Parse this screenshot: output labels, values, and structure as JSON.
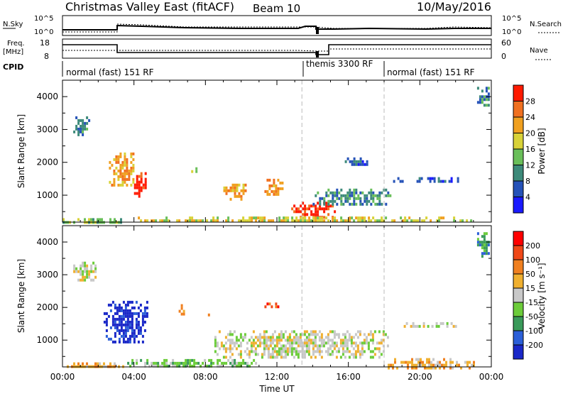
{
  "header": {
    "title": "Christmas Valley East (fitACF)",
    "beam": "Beam 10",
    "date": "10/May/2016"
  },
  "top_panels": {
    "nsky_label": "N.Sky",
    "nsky_ticks": [
      "10^5",
      "10^0"
    ],
    "nsearch_label": "N.Search",
    "freq_label_1": "Freq.",
    "freq_label_2": "[MHz]",
    "freq_ticks": [
      "18",
      "8"
    ],
    "nave_ticks": [
      "60",
      "0"
    ],
    "nave_label": "Nave",
    "cpid_label": "CPID",
    "cpid_segments": [
      "normal (fast) 151 RF",
      "themis 3300 RF",
      "normal (fast) 151 RF"
    ]
  },
  "chart_data": [
    {
      "type": "heatmap",
      "title": "",
      "xlabel": "",
      "ylabel": "Slant Range [km]",
      "xlim": [
        0,
        24
      ],
      "ylim": [
        180,
        4500
      ],
      "x_tick_labels": [
        "00:00",
        "04:00",
        "08:00",
        "12:00",
        "16:00",
        "20:00",
        "00:00"
      ],
      "y_ticks": [
        1000,
        2000,
        3000,
        4000
      ],
      "colorbar": {
        "label": "Power [dB]",
        "ticks": [
          "4",
          "8",
          "12",
          "16",
          "20",
          "24",
          "28"
        ],
        "colors": [
          "#1a1aff",
          "#2552b8",
          "#3d8a7a",
          "#6abf5a",
          "#d8d238",
          "#f0a020",
          "#f07020",
          "#ff1a00"
        ]
      },
      "regions": [
        {
          "t0": 0.6,
          "t1": 1.5,
          "r0": 2800,
          "r1": 3400,
          "level": 2
        },
        {
          "t0": 2.6,
          "t1": 4.0,
          "r0": 1300,
          "r1": 2300,
          "level": 5
        },
        {
          "t0": 4.0,
          "t1": 4.7,
          "r0": 1000,
          "r1": 1700,
          "level": 7
        },
        {
          "t0": 7.2,
          "t1": 7.6,
          "r0": 1650,
          "r1": 1850,
          "level": 3
        },
        {
          "t0": 9.0,
          "t1": 10.2,
          "r0": 900,
          "r1": 1350,
          "level": 5
        },
        {
          "t0": 11.3,
          "t1": 12.3,
          "r0": 1000,
          "r1": 1500,
          "level": 5
        },
        {
          "t0": 12.8,
          "t1": 15.3,
          "r0": 350,
          "r1": 800,
          "level": 7
        },
        {
          "t0": 14.0,
          "t1": 18.3,
          "r0": 700,
          "r1": 1200,
          "level": 2
        },
        {
          "t0": 15.8,
          "t1": 17.0,
          "r0": 1950,
          "r1": 2150,
          "level": 1
        },
        {
          "t0": 18.5,
          "t1": 22.3,
          "r0": 1450,
          "r1": 1550,
          "level": 1
        },
        {
          "t0": 3.5,
          "t1": 23.0,
          "r0": 180,
          "r1": 350,
          "level": 4
        },
        {
          "t0": 0.0,
          "t1": 3.5,
          "r0": 180,
          "r1": 300,
          "level": 3
        },
        {
          "t0": 23.2,
          "t1": 23.9,
          "r0": 3700,
          "r1": 4300,
          "level": 2
        }
      ]
    },
    {
      "type": "heatmap",
      "title": "",
      "xlabel": "Time UT",
      "ylabel": "Slant Range [km]",
      "xlim": [
        0,
        24
      ],
      "ylim": [
        180,
        4500
      ],
      "x_tick_labels": [
        "00:00",
        "04:00",
        "08:00",
        "12:00",
        "16:00",
        "20:00",
        "00:00"
      ],
      "y_ticks": [
        1000,
        2000,
        3000,
        4000
      ],
      "colorbar": {
        "label": "Velocity [m s⁻¹]",
        "ticks": [
          "200",
          "100",
          "50",
          "15",
          "-15",
          "-50",
          "-100",
          "-200"
        ],
        "colors": [
          "#1a28c8",
          "#2b5fd8",
          "#3a9a5a",
          "#6ccc3a",
          "#c8c8c8",
          "#f0b030",
          "#f08020",
          "#f04818",
          "#ff0000"
        ]
      },
      "regions": [
        {
          "t0": 0.6,
          "t1": 1.8,
          "r0": 2800,
          "r1": 3400,
          "level": 4
        },
        {
          "t0": 2.3,
          "t1": 4.8,
          "r0": 900,
          "r1": 2200,
          "level": 0
        },
        {
          "t0": 6.5,
          "t1": 6.9,
          "r0": 1800,
          "r1": 2100,
          "level": 6
        },
        {
          "t0": 7.9,
          "t1": 8.2,
          "r0": 1750,
          "r1": 1900,
          "level": 6
        },
        {
          "t0": 8.5,
          "t1": 18.2,
          "r0": 450,
          "r1": 1300,
          "level": 4
        },
        {
          "t0": 11.3,
          "t1": 12.2,
          "r0": 2050,
          "r1": 2150,
          "level": 7
        },
        {
          "t0": 3.5,
          "t1": 11.0,
          "r0": 200,
          "r1": 420,
          "level": 3
        },
        {
          "t0": 18.2,
          "t1": 23.0,
          "r0": 180,
          "r1": 450,
          "level": 5
        },
        {
          "t0": 0.0,
          "t1": 3.5,
          "r0": 180,
          "r1": 320,
          "level": 5
        },
        {
          "t0": 18.5,
          "t1": 22.3,
          "r0": 1450,
          "r1": 1550,
          "level": 4
        },
        {
          "t0": 23.2,
          "t1": 23.9,
          "r0": 3600,
          "r1": 4300,
          "level": 2
        }
      ]
    }
  ]
}
